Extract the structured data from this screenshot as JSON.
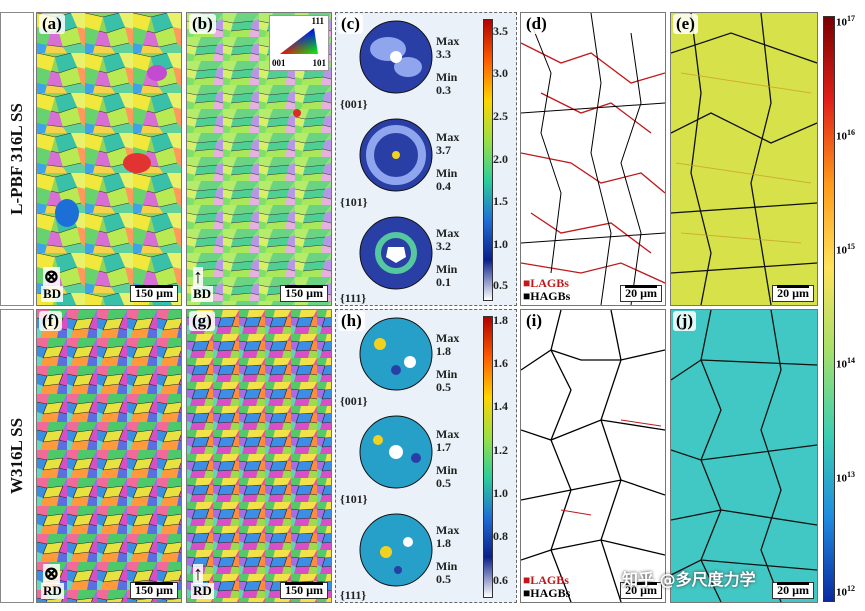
{
  "row_labels": [
    "L-PBF 316L SS",
    "W316L SS"
  ],
  "panels": {
    "a": {
      "label": "(a)",
      "scale": "150 µm",
      "dir_label": "BD",
      "dir_symbol": "⊗"
    },
    "b": {
      "label": "(b)",
      "scale": "150 µm",
      "dir_label": "BD",
      "dir_symbol": "↑"
    },
    "c": {
      "label": "(c)"
    },
    "d": {
      "label": "(d)",
      "scale": "20 µm",
      "legend_lagb": "LAGBs",
      "legend_hagb": "HAGBs"
    },
    "e": {
      "label": "(e)",
      "scale": "20 µm"
    },
    "f": {
      "label": "(f)",
      "scale": "150 µm",
      "dir_label": "RD",
      "dir_symbol": "⊗"
    },
    "g": {
      "label": "(g)",
      "scale": "150 µm",
      "dir_label": "RD",
      "dir_symbol": "↑"
    },
    "h": {
      "label": "(h)"
    },
    "i": {
      "label": "(i)",
      "scale": "20 µm",
      "legend_lagb": "LAGBs",
      "legend_hagb": "HAGBs"
    },
    "j": {
      "label": "(j)",
      "scale": "20 µm"
    }
  },
  "ipf_legend": {
    "top": "111",
    "bl": "001",
    "br": "101"
  },
  "pole_figures_top": [
    {
      "plane": "{001}",
      "max_label": "Max",
      "max": "3.3",
      "min_label": "Min",
      "min": "0.3"
    },
    {
      "plane": "{101}",
      "max_label": "Max",
      "max": "3.7",
      "min_label": "Min",
      "min": "0.4"
    },
    {
      "plane": "{111}",
      "max_label": "Max",
      "max": "3.2",
      "min_label": "Min",
      "min": "0.1"
    }
  ],
  "pole_figures_bottom": [
    {
      "plane": "{001}",
      "max_label": "Max",
      "max": "1.8",
      "min_label": "Min",
      "min": "0.5"
    },
    {
      "plane": "{101}",
      "max_label": "Max",
      "max": "1.7",
      "min_label": "Min",
      "min": "0.5"
    },
    {
      "plane": "{111}",
      "max_label": "Max",
      "max": "1.8",
      "min_label": "Min",
      "min": "0.5"
    }
  ],
  "colorbar_top_ticks": [
    "3.5",
    "3.0",
    "2.5",
    "2.0",
    "1.5",
    "1.0",
    "0.5"
  ],
  "colorbar_bottom_ticks": [
    "1.8",
    "1.6",
    "1.4",
    "1.2",
    "1.0",
    "0.8",
    "0.6"
  ],
  "density_colorbar": {
    "base": "10",
    "exponents": [
      "17",
      "16",
      "15",
      "14",
      "13",
      "12"
    ]
  },
  "watermark": "知乎 @多尺度力学",
  "colors": {
    "lagb": "#c0181a",
    "hagb": "#000000",
    "panel_border": "#777777"
  }
}
